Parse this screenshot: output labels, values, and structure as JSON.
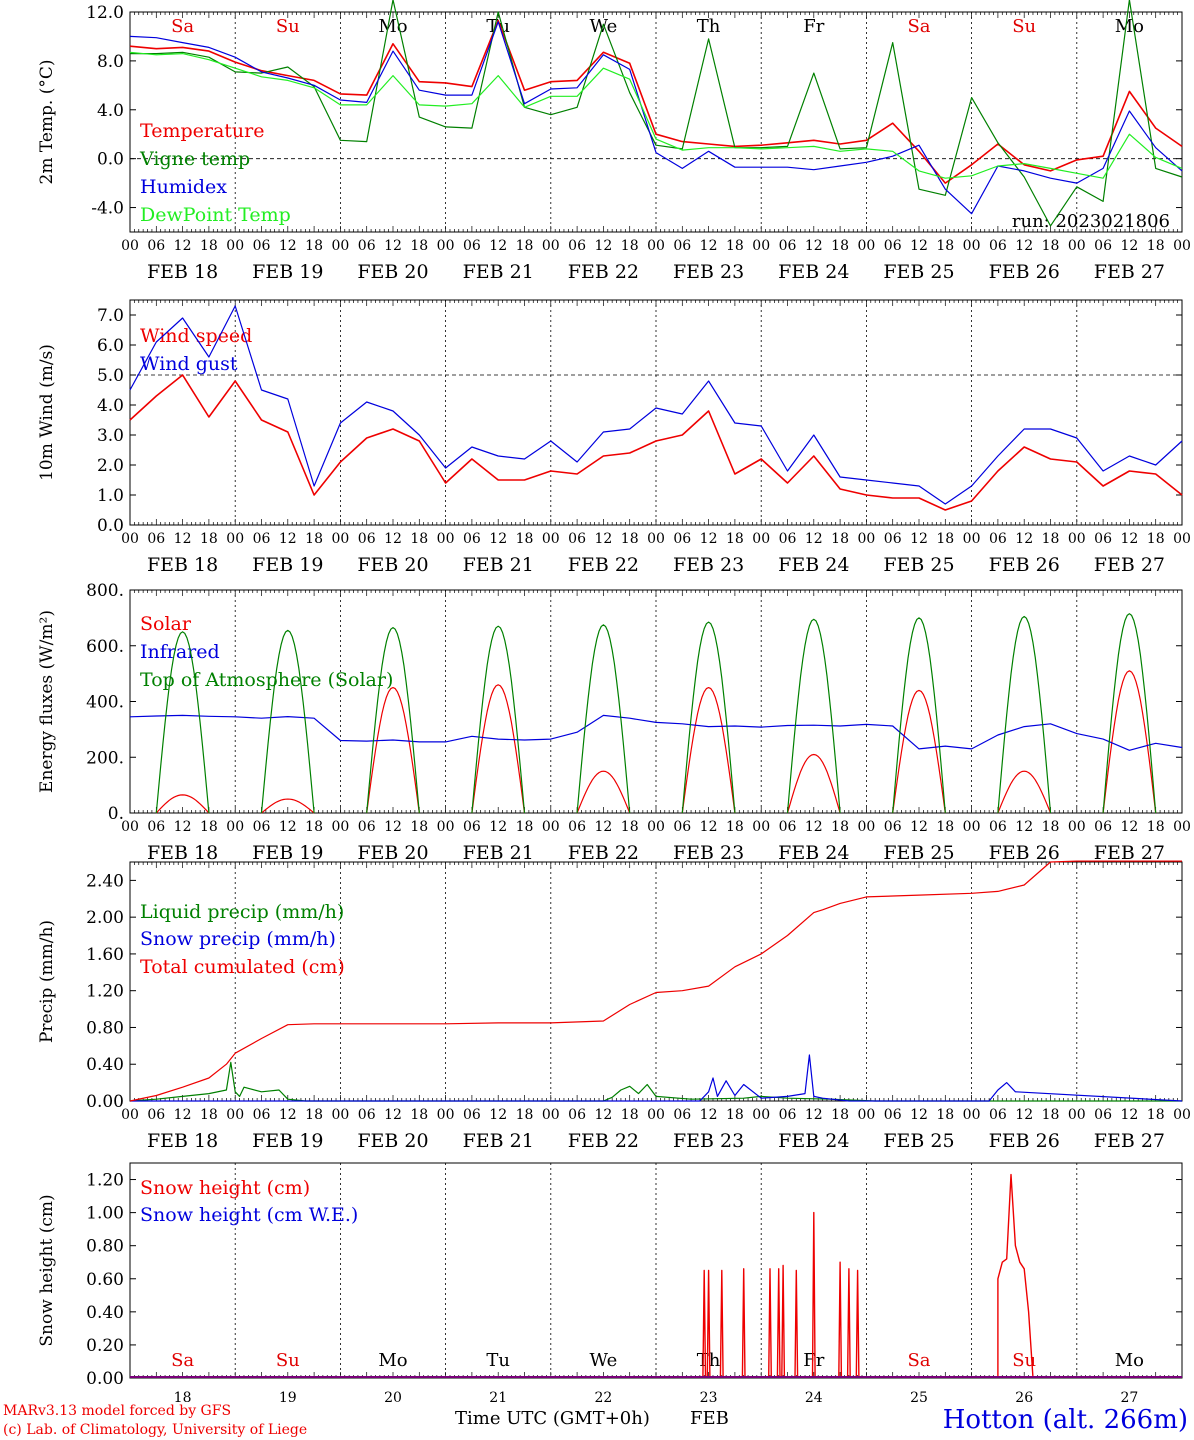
{
  "footer": {
    "model_line": "MARv3.13 model forced by GFS",
    "copyright_line": "(c) Lab. of Climatology, University of Liege",
    "time_label": "Time UTC (GMT+0h)",
    "month_label": "FEB",
    "station": "Hotton (alt. 266m)"
  },
  "day_names": [
    "Sa",
    "Su",
    "Mo",
    "Tu",
    "We",
    "Th",
    "Fr",
    "Sa",
    "Su",
    "Mo"
  ],
  "day_name_colors": [
    "#e00000",
    "#e00000",
    "#000000",
    "#000000",
    "#000000",
    "#000000",
    "#000000",
    "#e00000",
    "#e00000",
    "#000000"
  ],
  "date_labels": [
    "FEB 18",
    "FEB 19",
    "FEB 20",
    "FEB 21",
    "FEB 22",
    "FEB 23",
    "FEB 24",
    "FEB 25",
    "FEB 26",
    "FEB 27"
  ],
  "day_numbers": [
    "18",
    "19",
    "20",
    "21",
    "22",
    "23",
    "24",
    "25",
    "26",
    "27"
  ],
  "hour_labels": [
    "00",
    "06",
    "12",
    "18"
  ],
  "final_hour_label": "00",
  "colors": {
    "red": "#ee0000",
    "green": "#008000",
    "blue": "#0000dd",
    "lightgreen": "#22ee22",
    "purple": "#7a007a"
  },
  "chart_data": [
    {
      "type": "line",
      "panel": "temperature",
      "ylabel": "2m Temp. (°C)",
      "ylim": [
        -6,
        12
      ],
      "yticks": [
        -4,
        0,
        4,
        8,
        12
      ],
      "ytick_labels": [
        "-4.0",
        "0.0",
        "4.0",
        "8.0",
        "12.0"
      ],
      "ref_line": 0,
      "annotation": "run: 2023021806",
      "x_unit": "hours since FEB 18 00 UTC",
      "x": [
        0,
        6,
        12,
        18,
        24,
        30,
        36,
        42,
        48,
        54,
        60,
        66,
        72,
        78,
        84,
        90,
        96,
        102,
        108,
        114,
        120,
        126,
        132,
        138,
        144,
        150,
        156,
        162,
        168,
        174,
        180,
        186,
        192,
        198,
        204,
        210,
        216,
        222,
        228,
        234,
        240
      ],
      "series": [
        {
          "name": "Temperature",
          "color": "#ee0000",
          "values": [
            9.2,
            9.0,
            9.1,
            8.8,
            7.9,
            7.2,
            6.8,
            6.4,
            5.3,
            5.2,
            9.4,
            6.3,
            6.2,
            5.9,
            11.3,
            5.6,
            6.3,
            6.4,
            8.7,
            7.8,
            2.0,
            1.4,
            1.2,
            1.0,
            1.1,
            1.3,
            1.5,
            1.2,
            1.5,
            2.9,
            0.6,
            -2.0,
            -0.5,
            1.2,
            -0.5,
            -1.0,
            -0.1,
            0.2,
            5.5,
            2.5,
            1.0
          ]
        },
        {
          "name": "Vigne temp",
          "color": "#008000",
          "values": [
            8.6,
            8.6,
            8.7,
            8.3,
            7.1,
            7.0,
            7.5,
            5.9,
            1.5,
            1.4,
            13.0,
            3.4,
            2.6,
            2.5,
            12.0,
            4.2,
            3.6,
            4.2,
            11.0,
            5.4,
            1.1,
            0.8,
            9.8,
            0.9,
            0.9,
            1.0,
            7.0,
            0.8,
            0.9,
            9.5,
            -2.5,
            -3.0,
            5.0,
            1.3,
            -1.5,
            -5.5,
            -2.3,
            -3.5,
            13.0,
            -0.8,
            -1.5
          ]
        },
        {
          "name": "Humidex",
          "color": "#0000dd",
          "values": [
            10.0,
            9.9,
            9.5,
            9.1,
            8.3,
            7.1,
            6.6,
            6.0,
            4.8,
            4.6,
            8.8,
            5.6,
            5.2,
            5.2,
            11.2,
            4.5,
            5.7,
            5.8,
            8.5,
            7.3,
            0.5,
            -0.8,
            0.6,
            -0.7,
            -0.7,
            -0.7,
            -0.9,
            -0.6,
            -0.3,
            0.2,
            1.1,
            -2.5,
            -4.5,
            -0.6,
            -1.0,
            -1.6,
            -2.0,
            -0.8,
            3.9,
            0.9,
            -1.0
          ]
        },
        {
          "name": "DewPoint Temp",
          "color": "#22ee22",
          "values": [
            8.7,
            8.5,
            8.6,
            8.1,
            7.4,
            6.7,
            6.4,
            5.8,
            4.4,
            4.4,
            6.8,
            4.4,
            4.3,
            4.5,
            6.8,
            4.2,
            5.1,
            5.1,
            7.4,
            6.5,
            1.6,
            0.7,
            0.9,
            0.9,
            0.8,
            0.9,
            1.0,
            0.6,
            0.8,
            0.6,
            -1.0,
            -1.6,
            -1.4,
            -0.6,
            -0.4,
            -0.8,
            -1.2,
            -1.6,
            2.0,
            0.1,
            -0.8
          ]
        }
      ]
    },
    {
      "type": "line",
      "panel": "wind",
      "ylabel": "10m Wind (m/s)",
      "ylim": [
        0,
        7.5
      ],
      "yticks": [
        0,
        1,
        2,
        3,
        4,
        5,
        6,
        7
      ],
      "ytick_labels": [
        "0.0",
        "1.0",
        "2.0",
        "3.0",
        "4.0",
        "5.0",
        "6.0",
        "7.0"
      ],
      "ref_line": 5,
      "x_unit": "hours since FEB 18 00 UTC",
      "x": [
        0,
        6,
        12,
        18,
        24,
        30,
        36,
        42,
        48,
        54,
        60,
        66,
        72,
        78,
        84,
        90,
        96,
        102,
        108,
        114,
        120,
        126,
        132,
        138,
        144,
        150,
        156,
        162,
        168,
        174,
        180,
        186,
        192,
        198,
        204,
        210,
        216,
        222,
        228,
        234,
        240
      ],
      "series": [
        {
          "name": "Wind speed",
          "color": "#ee0000",
          "values": [
            3.5,
            4.3,
            5.0,
            3.6,
            4.8,
            3.5,
            3.1,
            1.0,
            2.1,
            2.9,
            3.2,
            2.8,
            1.4,
            2.2,
            1.5,
            1.5,
            1.8,
            1.7,
            2.3,
            2.4,
            2.8,
            3.0,
            3.8,
            1.7,
            2.2,
            1.4,
            2.3,
            1.2,
            1.0,
            0.9,
            0.9,
            0.5,
            0.8,
            1.8,
            2.6,
            2.2,
            2.1,
            1.3,
            1.8,
            1.7,
            1.0
          ]
        },
        {
          "name": "Wind gust",
          "color": "#0000dd",
          "values": [
            4.5,
            6.1,
            6.9,
            5.6,
            7.3,
            4.5,
            4.2,
            1.3,
            3.4,
            4.1,
            3.8,
            3.0,
            1.9,
            2.6,
            2.3,
            2.2,
            2.8,
            2.1,
            3.1,
            3.2,
            3.9,
            3.7,
            4.8,
            3.4,
            3.3,
            1.8,
            3.0,
            1.6,
            1.5,
            1.4,
            1.3,
            0.7,
            1.3,
            2.3,
            3.2,
            3.2,
            2.9,
            1.8,
            2.3,
            2.0,
            2.8
          ]
        }
      ]
    },
    {
      "type": "line",
      "panel": "energy",
      "ylabel": "Energy fluxes (W/m²)",
      "ylim": [
        0,
        800
      ],
      "yticks": [
        0,
        200,
        400,
        600,
        800
      ],
      "ytick_labels": [
        "0.",
        "200.",
        "400.",
        "600.",
        "800."
      ],
      "x_unit": "hours since FEB 18 00 UTC",
      "daytime_hours": [
        6,
        18
      ],
      "series": [
        {
          "name": "Solar",
          "color": "#ee0000",
          "daily_peaks": [
            65,
            50,
            450,
            460,
            150,
            450,
            210,
            440,
            150,
            510
          ]
        },
        {
          "name": "Infrared",
          "color": "#0000dd",
          "x": [
            0,
            6,
            12,
            18,
            24,
            30,
            36,
            42,
            48,
            54,
            60,
            66,
            72,
            78,
            84,
            90,
            96,
            102,
            108,
            114,
            120,
            126,
            132,
            138,
            144,
            150,
            156,
            162,
            168,
            174,
            180,
            186,
            192,
            198,
            204,
            210,
            216,
            222,
            228,
            234,
            240
          ],
          "values": [
            345,
            348,
            350,
            347,
            345,
            340,
            346,
            340,
            260,
            258,
            262,
            255,
            255,
            275,
            265,
            262,
            265,
            290,
            350,
            340,
            325,
            320,
            310,
            312,
            308,
            314,
            315,
            312,
            318,
            312,
            230,
            240,
            230,
            280,
            310,
            320,
            285,
            265,
            225,
            250,
            235
          ]
        },
        {
          "name": "Top of Atmosphere (Solar)",
          "color": "#008000",
          "daily_peaks": [
            650,
            655,
            665,
            670,
            675,
            685,
            695,
            700,
            705,
            715
          ]
        }
      ]
    },
    {
      "type": "line",
      "panel": "precip",
      "ylabel": "Precip (mm/h)",
      "ylim": [
        0,
        2.6
      ],
      "yticks": [
        0,
        0.4,
        0.8,
        1.2,
        1.6,
        2.0,
        2.4
      ],
      "ytick_labels": [
        "0.00",
        "0.40",
        "0.80",
        "1.20",
        "1.60",
        "2.00",
        "2.40"
      ],
      "x_unit": "hours since FEB 18 00 UTC",
      "series": [
        {
          "name": "Liquid precip (mm/h)",
          "color": "#008000",
          "x": [
            0,
            6,
            12,
            18,
            22,
            23,
            24,
            25,
            26,
            30,
            34,
            36,
            40,
            108,
            110,
            112,
            114,
            116,
            118,
            120,
            128,
            140,
            144,
            150,
            160,
            170,
            240
          ],
          "values": [
            0,
            0.02,
            0.05,
            0.08,
            0.12,
            0.42,
            0.1,
            0.05,
            0.15,
            0.1,
            0.12,
            0.02,
            0,
            0,
            0.04,
            0.12,
            0.16,
            0.08,
            0.18,
            0.05,
            0.02,
            0.03,
            0.05,
            0.03,
            0.02,
            0,
            0
          ]
        },
        {
          "name": "Snow precip (mm/h)",
          "color": "#0000dd",
          "x": [
            0,
            130,
            132,
            133,
            134,
            136,
            138,
            140,
            144,
            150,
            154,
            155,
            156,
            158,
            164,
            196,
            198,
            200,
            202,
            240
          ],
          "values": [
            0,
            0,
            0.1,
            0.25,
            0.05,
            0.22,
            0.06,
            0.18,
            0.03,
            0.05,
            0.08,
            0.5,
            0.05,
            0.03,
            0,
            0,
            0.12,
            0.2,
            0.1,
            0
          ]
        },
        {
          "name": "Total cumulated (cm)",
          "color": "#ee0000",
          "x": [
            0,
            6,
            12,
            18,
            22,
            24,
            30,
            36,
            42,
            48,
            60,
            72,
            84,
            96,
            108,
            114,
            120,
            126,
            132,
            138,
            144,
            150,
            156,
            158,
            162,
            168,
            180,
            192,
            198,
            204,
            210,
            216,
            228,
            240
          ],
          "values": [
            0,
            0.06,
            0.15,
            0.25,
            0.4,
            0.52,
            0.68,
            0.83,
            0.84,
            0.84,
            0.84,
            0.84,
            0.85,
            0.85,
            0.87,
            1.05,
            1.18,
            1.2,
            1.25,
            1.46,
            1.6,
            1.8,
            2.05,
            2.08,
            2.15,
            2.22,
            2.24,
            2.26,
            2.28,
            2.35,
            2.6,
            2.61,
            2.61,
            2.61
          ]
        }
      ]
    },
    {
      "type": "line",
      "panel": "snow",
      "ylabel": "Snow height (cm)",
      "ylim": [
        0,
        1.3
      ],
      "yticks": [
        0,
        0.2,
        0.4,
        0.6,
        0.8,
        1.0,
        1.2
      ],
      "ytick_labels": [
        "0.00",
        "0.20",
        "0.40",
        "0.60",
        "0.80",
        "1.00",
        "1.20"
      ],
      "x_unit": "hours since FEB 18 00 UTC",
      "series": [
        {
          "name": "Snow height (cm)",
          "color": "#ee0000",
          "spikes": [
            [
              131,
              0.65
            ],
            [
              132,
              0.65
            ],
            [
              135,
              0.65
            ],
            [
              140,
              0.66
            ],
            [
              146,
              0.66
            ],
            [
              148,
              0.66
            ],
            [
              149,
              0.68
            ],
            [
              152,
              0.65
            ],
            [
              156,
              1.0
            ],
            [
              162,
              0.7
            ],
            [
              164,
              0.66
            ],
            [
              166,
              0.65
            ]
          ],
          "block": {
            "x": [
              198,
              199,
              200,
              201,
              202,
              203,
              204,
              205,
              206
            ],
            "values": [
              0.6,
              0.7,
              0.72,
              1.23,
              0.8,
              0.7,
              0.66,
              0.4,
              0
            ]
          }
        },
        {
          "name": "Snow height (cm W.E.)",
          "color": "#0000dd",
          "values": [
            0
          ]
        }
      ]
    }
  ]
}
